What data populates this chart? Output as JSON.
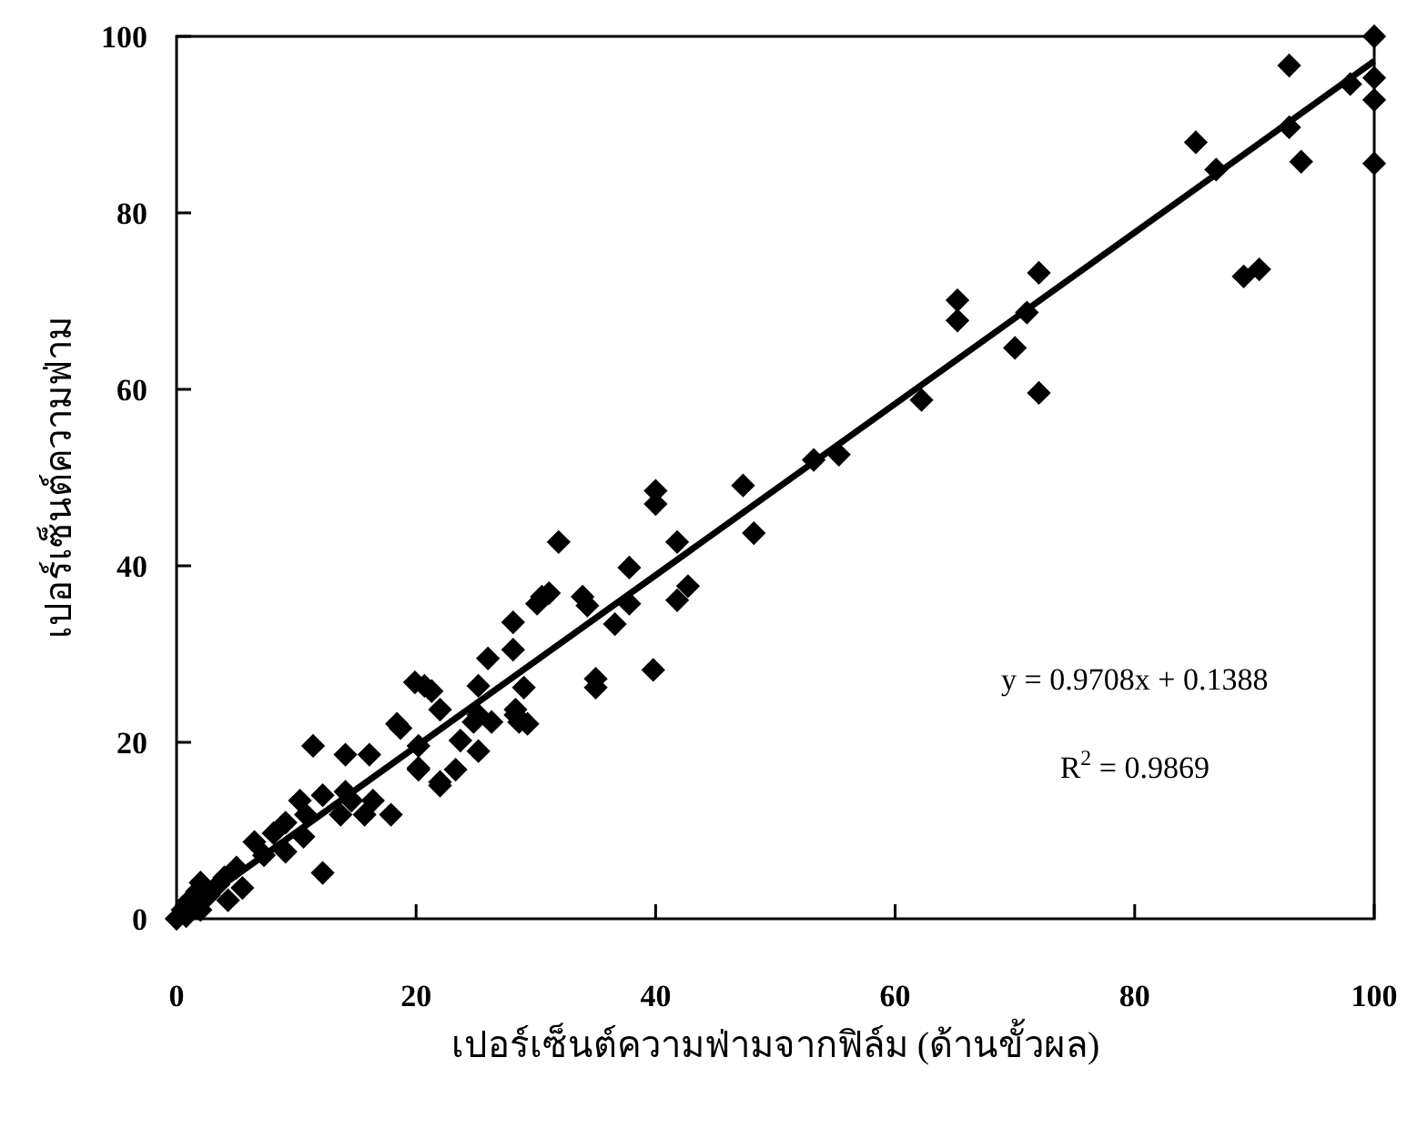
{
  "chart_data": {
    "type": "scatter",
    "xlabel": "เปอร์เซ็นต์ความฟ่ามจากฟิล์ม (ด้านขั้วผล)",
    "ylabel": "เปอร์เซ็นต์ความฟ่าม",
    "xlim": [
      0,
      100
    ],
    "ylim": [
      0,
      100
    ],
    "xticks": [
      0,
      20,
      40,
      60,
      80,
      100
    ],
    "yticks": [
      0,
      20,
      40,
      60,
      80,
      100
    ],
    "grid": false,
    "annotations": [
      "y = 0.9708x + 0.1388",
      "R$^{2}$ = 0.9869"
    ],
    "series": [
      {
        "marker": "diamond",
        "color": "#000000",
        "x": [
          100,
          98,
          100,
          100,
          100,
          92.9,
          92.9,
          85.1,
          86.8,
          93.9,
          89.1,
          90.4,
          72,
          65.2,
          65.2,
          71,
          70,
          72,
          62.2,
          55.3,
          53.2,
          40,
          40,
          47.3,
          48.2,
          31.9,
          37.8,
          41.8,
          42.7,
          41.8,
          37.8,
          34.3,
          30.5,
          31.1,
          33.9,
          36.6,
          39.8,
          35,
          35,
          28.1,
          28.1,
          26,
          25.2,
          20.7,
          21.3,
          19.9,
          29,
          28.3,
          28.6,
          26.3,
          22,
          24.8,
          23.7,
          25.2,
          23.3,
          22,
          20.2,
          18.7,
          20.2,
          14.1,
          16.1,
          30.1,
          25.2,
          28.3,
          29.3,
          18.4,
          11.4,
          20.2,
          22,
          10.3,
          12.2,
          14.1,
          14.6,
          16.4,
          17.9,
          15.7,
          13.7,
          10.8,
          9.1,
          8.1,
          6.5,
          10.6,
          12.2,
          9.1,
          7.3,
          5,
          4,
          2,
          0,
          0.5,
          1,
          1.7,
          2.7,
          3.5,
          4.3,
          5.5,
          0.8,
          2
        ],
        "values": [
          100,
          94.6,
          95.3,
          92.8,
          85.6,
          96.7,
          89.7,
          88,
          84.9,
          85.8,
          72.8,
          73.6,
          73.2,
          70.1,
          67.8,
          68.7,
          64.7,
          59.6,
          58.8,
          52.6,
          52,
          48.5,
          47,
          49.1,
          43.7,
          42.7,
          39.8,
          42.7,
          37.7,
          36.1,
          35.7,
          35.5,
          36.5,
          36.9,
          36.5,
          33.4,
          28.2,
          27.2,
          26.2,
          33.6,
          30.5,
          29.5,
          26.4,
          26.4,
          25.8,
          26.8,
          26.2,
          23.7,
          22.3,
          22.3,
          23.7,
          22.3,
          20.2,
          19,
          16.9,
          15.1,
          16.9,
          21.6,
          19.6,
          18.6,
          18.6,
          35.7,
          23.1,
          23.1,
          22.1,
          22.1,
          19.6,
          17.1,
          15.5,
          13.4,
          14,
          14.4,
          13.4,
          13.4,
          11.8,
          11.8,
          11.8,
          11.8,
          10.9,
          9.7,
          8.7,
          9.3,
          5.2,
          7.6,
          7.2,
          5.8,
          4.7,
          4.1,
          0,
          1,
          2,
          3.1,
          2.7,
          3.9,
          2.1,
          3.5,
          0.3,
          1
        ]
      },
      {
        "type": "line",
        "marker": "none",
        "color": "#000000",
        "x": [
          0,
          100
        ],
        "values": [
          0.1,
          97.2
        ]
      }
    ]
  }
}
